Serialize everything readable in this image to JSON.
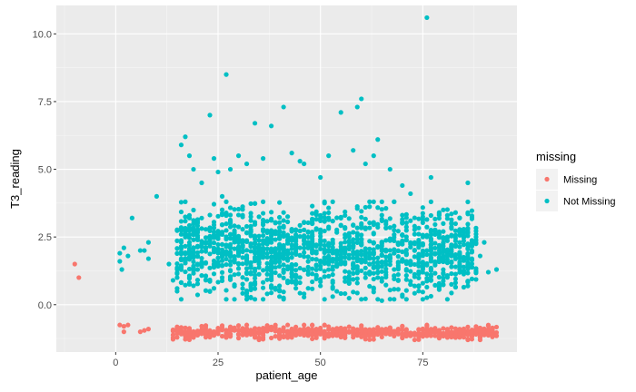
{
  "chart_data": {
    "type": "scatter",
    "xlabel": "patient_age",
    "ylabel": "T3_reading",
    "xlim": [
      -14.5,
      98
    ],
    "ylim": [
      -1.75,
      11.05
    ],
    "x_ticks": [
      0,
      25,
      50,
      75
    ],
    "x_tick_labels": [
      "0",
      "25",
      "50",
      "75"
    ],
    "y_ticks": [
      0,
      2.5,
      5,
      7.5,
      10
    ],
    "y_tick_labels": [
      "0.0",
      "2.5",
      "5.0",
      "7.5",
      "10.0"
    ],
    "grid": true,
    "legend": {
      "title": "missing",
      "placement": "right",
      "entries": [
        "Missing",
        "Not Missing"
      ]
    },
    "series": [
      {
        "name": "Missing",
        "color": "#F8766D",
        "points": [
          [
            -10,
            1.5
          ],
          [
            -9,
            1.0
          ],
          [
            1,
            -0.75
          ],
          [
            2,
            -0.8
          ],
          [
            2,
            -1.0
          ],
          [
            3,
            -0.75
          ],
          [
            6,
            -1.0
          ],
          [
            7,
            -0.95
          ],
          [
            8,
            -0.9
          ]
        ],
        "band": {
          "x_range": [
            14,
            93
          ],
          "y_range": [
            -1.3,
            -0.75
          ],
          "n": 620
        }
      },
      {
        "name": "Not Missing",
        "color": "#00BFC4",
        "points": [
          [
            1,
            1.9
          ],
          [
            1,
            1.6
          ],
          [
            1.5,
            1.3
          ],
          [
            2,
            2.1
          ],
          [
            3,
            1.8
          ],
          [
            4,
            3.2
          ],
          [
            6,
            2.0
          ],
          [
            7,
            2.0
          ],
          [
            8,
            2.3
          ],
          [
            8,
            1.7
          ],
          [
            10,
            4.0
          ],
          [
            13,
            1.5
          ],
          [
            14,
            0.9
          ],
          [
            15,
            1.0
          ],
          [
            16,
            5.9
          ],
          [
            17,
            6.2
          ],
          [
            18,
            5.5
          ],
          [
            19,
            5.0
          ],
          [
            21,
            4.5
          ],
          [
            23,
            7.0
          ],
          [
            24,
            5.4
          ],
          [
            25,
            4.9
          ],
          [
            26,
            4.0
          ],
          [
            27,
            8.5
          ],
          [
            28,
            5.0
          ],
          [
            30,
            5.5
          ],
          [
            32,
            5.2
          ],
          [
            34,
            6.7
          ],
          [
            36,
            5.4
          ],
          [
            38,
            6.6
          ],
          [
            41,
            7.3
          ],
          [
            43,
            5.6
          ],
          [
            45,
            5.3
          ],
          [
            46,
            5.2
          ],
          [
            50,
            4.7
          ],
          [
            52,
            5.5
          ],
          [
            55,
            7.1
          ],
          [
            58,
            5.7
          ],
          [
            59,
            7.3
          ],
          [
            60,
            7.6
          ],
          [
            61,
            5.2
          ],
          [
            63,
            5.5
          ],
          [
            64,
            6.1
          ],
          [
            67,
            5.0
          ],
          [
            70,
            4.4
          ],
          [
            72,
            4.1
          ],
          [
            76,
            10.6
          ],
          [
            77,
            4.7
          ],
          [
            80,
            3.5
          ],
          [
            84,
            3.2
          ],
          [
            86,
            4.5
          ],
          [
            86,
            3.4
          ],
          [
            88,
            2.5
          ],
          [
            89,
            1.8
          ],
          [
            90,
            2.3
          ],
          [
            91,
            1.2
          ],
          [
            93,
            1.3
          ],
          [
            19,
            0.7
          ],
          [
            23,
            0.5
          ],
          [
            27,
            0.2
          ],
          [
            33,
            0.25
          ],
          [
            40,
            0.3
          ],
          [
            46,
            0.4
          ],
          [
            53,
            0.3
          ],
          [
            60,
            0.2
          ],
          [
            65,
            0.15
          ],
          [
            70,
            0.3
          ],
          [
            75,
            0.2
          ]
        ],
        "band": {
          "x_range": [
            15,
            88
          ],
          "y_range": [
            0.2,
            3.8
          ],
          "n": 1500
        }
      }
    ]
  }
}
